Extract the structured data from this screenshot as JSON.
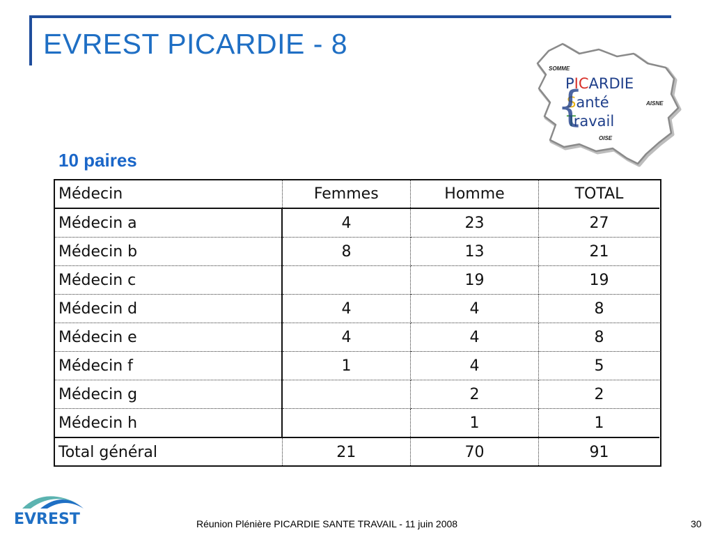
{
  "slide": {
    "title": "EVREST PICARDIE - 8",
    "subtitle": "10 paires",
    "footer": "Réunion Plénière PICARDIE SANTE TRAVAIL  - 11 juin 2008",
    "page_number": "30"
  },
  "logo": {
    "line1_a": "P",
    "line1_b": "I",
    "line1_c": "C",
    "line1_d": "ARDIE",
    "line2_a": "S",
    "line2_b": "anté",
    "line3_a": "T",
    "line3_b": "ravail",
    "somme": "SOMME",
    "aisne": "AISNE",
    "oise": "OISE"
  },
  "evrest_logo": {
    "text": "EVREST"
  },
  "table": {
    "headers": [
      "Médecin",
      "Femmes",
      "Homme",
      "TOTAL"
    ],
    "rows": [
      [
        "Médecin a",
        "4",
        "23",
        "27"
      ],
      [
        "Médecin b",
        "8",
        "13",
        "21"
      ],
      [
        "Médecin c",
        "",
        "19",
        "19"
      ],
      [
        "Médecin d",
        "4",
        "4",
        "8"
      ],
      [
        "Médecin e",
        "4",
        "4",
        "8"
      ],
      [
        "Médecin f",
        "1",
        "4",
        "5"
      ],
      [
        "Médecin g",
        "",
        "2",
        "2"
      ],
      [
        "Médecin h",
        "",
        "1",
        "1"
      ]
    ],
    "total": [
      "Total général",
      "21",
      "70",
      "91"
    ]
  },
  "colors": {
    "title": "#1f6fc4",
    "rule": "#1f4e9c",
    "subtitle": "#1a66c8",
    "logo_text": "#1f3f8a",
    "logo_red": "#d8312a",
    "logo_yellow": "#e8b317",
    "logo_green": "#3a9a35",
    "evrest_teal": "#5bb3b0",
    "evrest_blue": "#1f6fc4"
  }
}
